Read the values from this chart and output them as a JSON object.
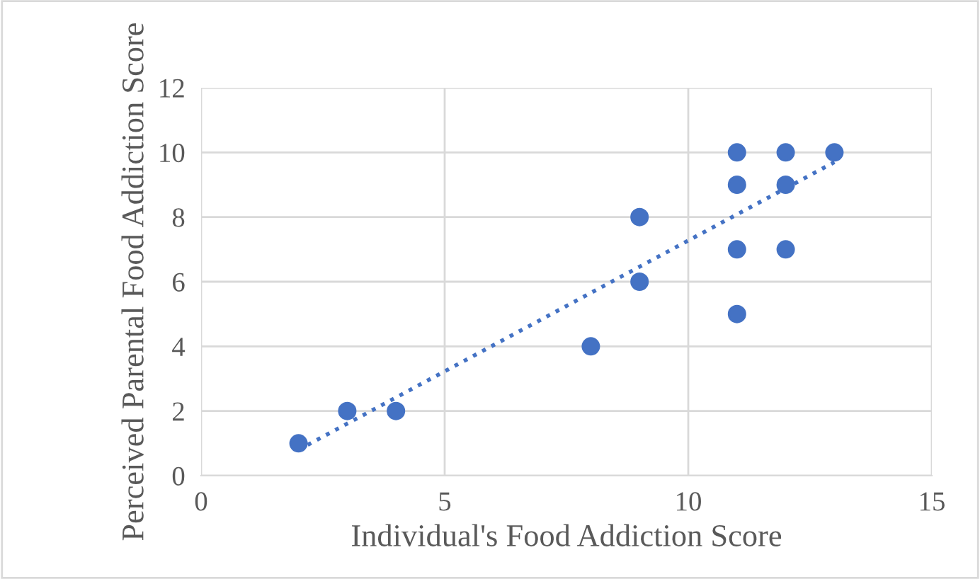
{
  "chart_data": {
    "type": "scatter",
    "xlabel": "Individual's Food Addiction Score",
    "ylabel": "Perceived Parental Food Addiction Score",
    "series": [
      {
        "color": "#4472c4",
        "marker": "circle",
        "x": [
          2,
          3,
          4,
          8,
          9,
          9,
          11,
          11,
          11,
          11,
          12,
          12,
          12,
          13
        ],
        "values": [
          1,
          2,
          2,
          4,
          8,
          6,
          10,
          9,
          7,
          5,
          10,
          9,
          7,
          10
        ]
      },
      {
        "type": "line",
        "color": "#4472c4",
        "line_style": "dotted",
        "marker": "none",
        "x": [
          2,
          13
        ],
        "values": [
          0.8,
          9.7
        ]
      }
    ],
    "xlim": [
      0,
      15
    ],
    "xticks": [
      0,
      5,
      10,
      15
    ],
    "ylim": [
      0,
      12
    ],
    "yticks": [
      0,
      2,
      4,
      6,
      8,
      10,
      12
    ],
    "grid": true
  }
}
